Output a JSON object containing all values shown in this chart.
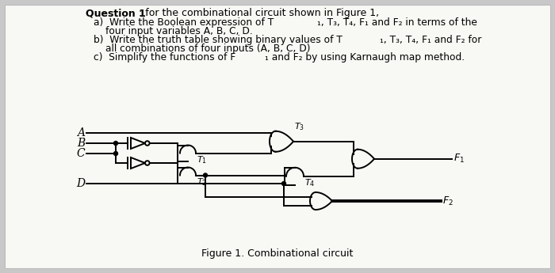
{
  "bg_color": "#c8c8c8",
  "panel_color": "#f8f8f4",
  "text_color": "#000000",
  "lw": 1.4,
  "fig_caption": "Figure 1. Combinational circuit",
  "inputs": [
    "A",
    "B",
    "C",
    "D"
  ],
  "q1_bold": "Question 1",
  "q1_rest": ": for the combinational circuit shown in Figure 1,",
  "qa": "a)  Write the Boolean expression of T",
  "qa_sub": "₁, T₃, T₄, F₁ and F₂ in terms of the",
  "qa2": "four input variables A, B, C, D.",
  "qb": "b)  Write the truth table showing binary values of T",
  "qb_sub": "₁, T₃, T₄, F₁ and F₂ for",
  "qb2": "all combinations of four inputs (A, B, C, D)",
  "qc": "c)  Simplify the functions of F",
  "qc_sub": "₁ and F₂ by using Karnaugh map method."
}
